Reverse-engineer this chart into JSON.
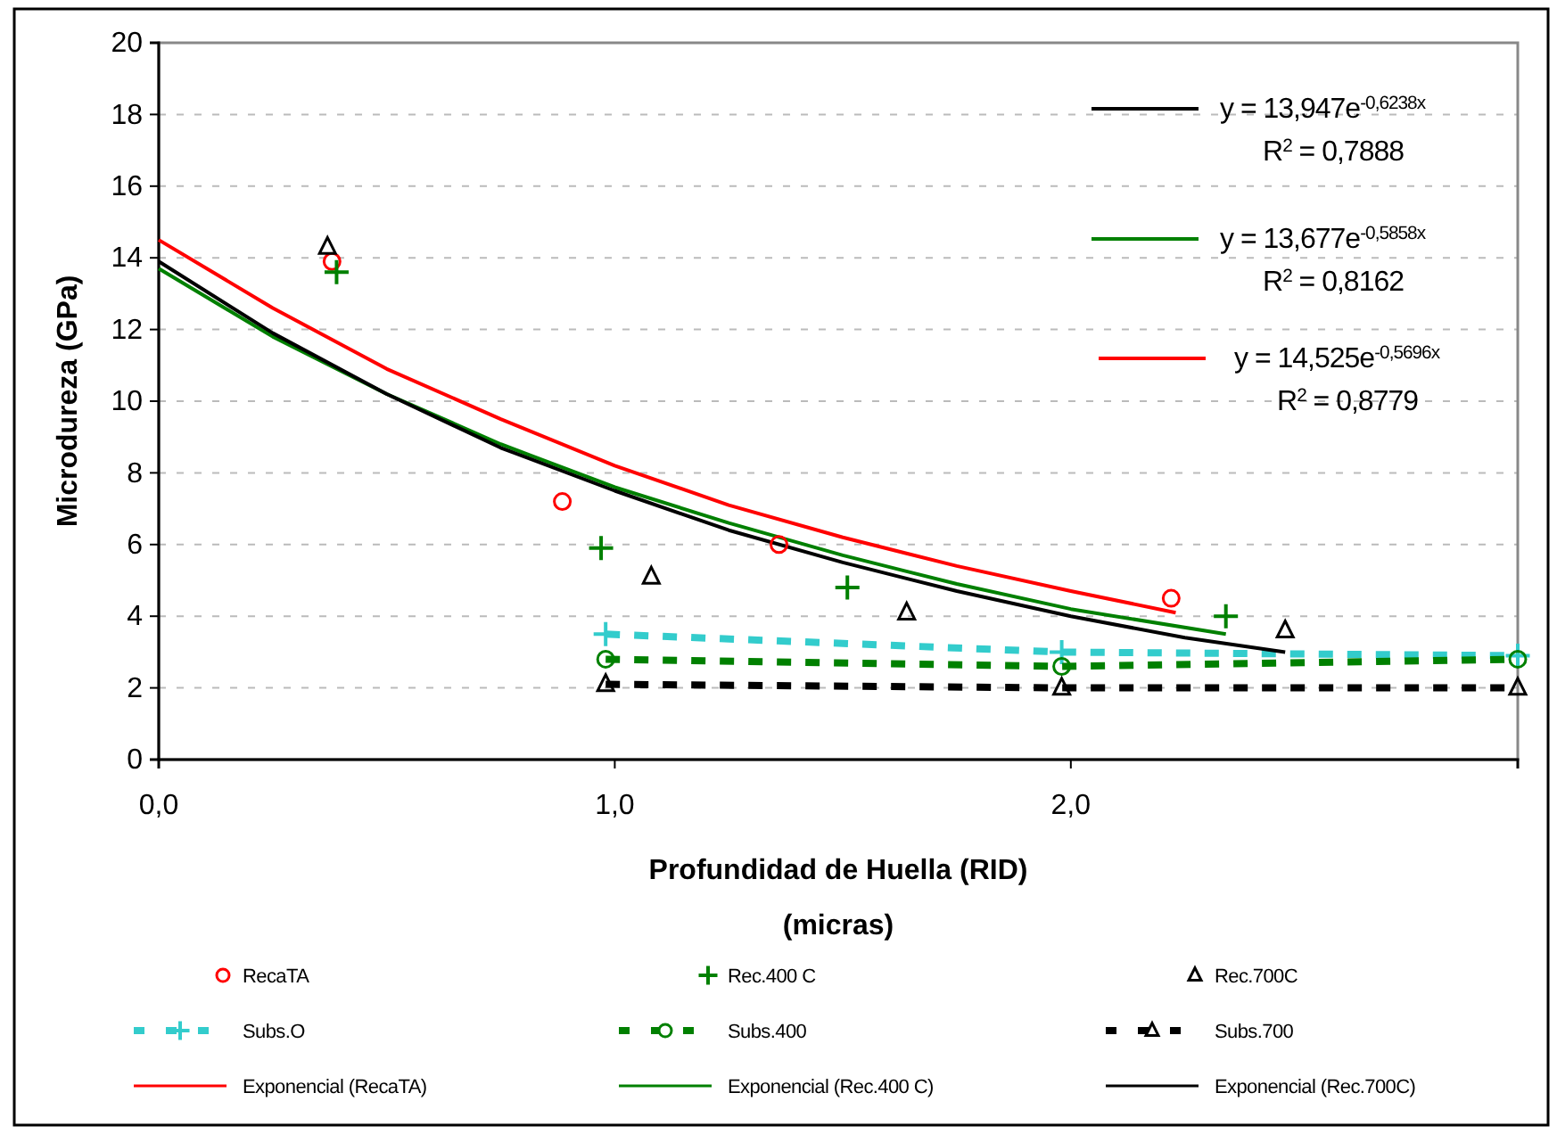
{
  "chart_data": {
    "type": "scatter",
    "xlabel": "Profundidad de Huella (RID)\n(micras)",
    "ylabel": "Microdureza (GPa)",
    "xlim": [
      0,
      2.98
    ],
    "ylim": [
      0,
      20
    ],
    "xticks": [
      {
        "value": 0,
        "label": "0,0"
      },
      {
        "value": 1,
        "label": "1,0"
      },
      {
        "value": 2,
        "label": "2,0"
      }
    ],
    "yticks": [
      0,
      2,
      4,
      6,
      8,
      10,
      12,
      14,
      16,
      18,
      20
    ],
    "grid": "y",
    "legend": "bottom",
    "annotations": [
      "y = 13,947e$^{-0,6238x}$",
      "R$^{2}$ = 0,7888",
      "y = 13,677e$^{-0,5858x}$",
      "R$^{2}$ = 0,8162",
      "y = 14,525e$^{-0,5696x}$",
      "R$^{2}$ = 0,8779"
    ],
    "series": [
      {
        "name": "RecaTA",
        "type": "scatter",
        "marker": "circle",
        "color": "#ff0000",
        "x": [
          0.38,
          0.885,
          1.36,
          2.22
        ],
        "values": [
          13.9,
          7.2,
          6.0,
          4.5
        ]
      },
      {
        "name": "Rec.400 C",
        "type": "scatter",
        "marker": "cross",
        "color": "#008000",
        "x": [
          0.39,
          0.97,
          1.51,
          2.34
        ],
        "values": [
          13.6,
          5.9,
          4.8,
          4.0
        ]
      },
      {
        "name": "Rec.700C",
        "type": "scatter",
        "marker": "triangle",
        "color": "#000000",
        "x": [
          0.37,
          1.08,
          1.64,
          2.47
        ],
        "values": [
          14.3,
          5.1,
          4.1,
          3.6
        ]
      },
      {
        "name": "Subs.O",
        "type": "line",
        "marker": "cross",
        "line_style": "dashed",
        "color": "#33cccc",
        "x": [
          0.98,
          1.98,
          2.98
        ],
        "values": [
          3.5,
          3.0,
          2.9
        ]
      },
      {
        "name": "Subs.400",
        "type": "line",
        "marker": "circle",
        "line_style": "dashed",
        "color": "#008000",
        "x": [
          0.98,
          1.98,
          2.98
        ],
        "values": [
          2.8,
          2.6,
          2.8
        ]
      },
      {
        "name": "Subs.700",
        "type": "line",
        "marker": "triangle",
        "line_style": "dashed",
        "color": "#000000",
        "x": [
          0.98,
          1.98,
          2.98
        ],
        "values": [
          2.1,
          2.0,
          2.0
        ]
      },
      {
        "name": "Exponencial (RecaTA)",
        "type": "line",
        "marker": "none",
        "line_style": "solid",
        "color": "#ff0000",
        "x": [
          0,
          0.25,
          0.5,
          0.75,
          1,
          1.25,
          1.5,
          1.75,
          2,
          2.23
        ],
        "values": [
          14.5,
          12.6,
          10.9,
          9.5,
          8.2,
          7.1,
          6.2,
          5.4,
          4.7,
          4.1
        ]
      },
      {
        "name": "Exponencial (Rec.400 C)",
        "type": "line",
        "marker": "none",
        "line_style": "solid",
        "color": "#008000",
        "x": [
          0,
          0.25,
          0.5,
          0.75,
          1,
          1.25,
          1.5,
          1.75,
          2,
          2.34
        ],
        "values": [
          13.7,
          11.8,
          10.2,
          8.8,
          7.6,
          6.6,
          5.7,
          4.9,
          4.2,
          3.5
        ]
      },
      {
        "name": "Exponencial (Rec.700C)",
        "type": "line",
        "marker": "none",
        "line_style": "solid",
        "color": "#000000",
        "x": [
          0,
          0.25,
          0.5,
          0.75,
          1,
          1.25,
          1.5,
          1.75,
          2,
          2.25,
          2.47
        ],
        "values": [
          13.9,
          11.9,
          10.2,
          8.7,
          7.5,
          6.4,
          5.5,
          4.7,
          4.0,
          3.4,
          3.0
        ]
      }
    ]
  }
}
